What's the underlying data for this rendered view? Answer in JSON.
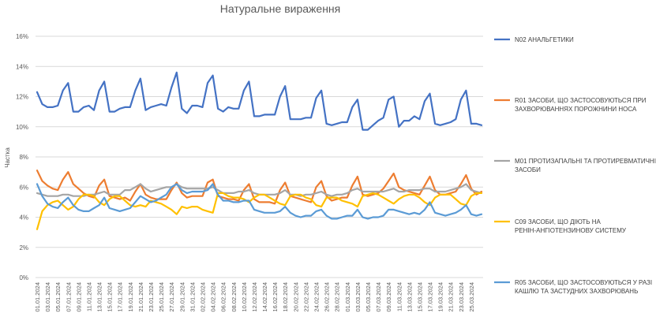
{
  "chart_data": {
    "type": "line",
    "title": "Натуральне вираження",
    "ylabel": "Частка",
    "xlabel": "",
    "ylim": [
      0,
      16
    ],
    "yticks": [
      "0%",
      "2%",
      "4%",
      "6%",
      "8%",
      "10%",
      "12%",
      "14%",
      "16%"
    ],
    "grid": true,
    "legend_position": "right",
    "x": [
      "01.01.2024",
      "02.01.2024",
      "03.01.2024",
      "04.01.2024",
      "05.01.2024",
      "06.01.2024",
      "07.01.2024",
      "08.01.2024",
      "09.01.2024",
      "10.01.2024",
      "11.01.2024",
      "12.01.2024",
      "13.01.2024",
      "14.01.2024",
      "15.01.2024",
      "16.01.2024",
      "17.01.2024",
      "18.01.2024",
      "19.01.2024",
      "20.01.2024",
      "21.01.2024",
      "22.01.2024",
      "23.01.2024",
      "24.01.2024",
      "25.01.2024",
      "26.01.2024",
      "27.01.2024",
      "28.01.2024",
      "29.01.2024",
      "30.01.2024",
      "31.01.2024",
      "01.02.2024",
      "02.02.2024",
      "03.02.2024",
      "04.02.2024",
      "05.02.2024",
      "06.02.2024",
      "07.02.2024",
      "08.02.2024",
      "09.02.2024",
      "10.02.2024",
      "11.02.2024",
      "12.02.2024",
      "13.02.2024",
      "14.02.2024",
      "15.02.2024",
      "16.02.2024",
      "17.02.2024",
      "18.02.2024",
      "19.02.2024",
      "20.02.2024",
      "21.02.2024",
      "22.02.2024",
      "23.02.2024",
      "24.02.2024",
      "25.02.2024",
      "26.02.2024",
      "27.02.2024",
      "28.02.2024",
      "29.02.2024",
      "01.03.2024",
      "02.03.2024",
      "03.03.2024",
      "04.03.2024",
      "05.03.2024",
      "06.03.2024",
      "07.03.2024",
      "08.03.2024",
      "09.03.2024",
      "10.03.2024",
      "11.03.2024",
      "12.03.2024",
      "13.03.2024",
      "14.03.2024",
      "15.03.2024",
      "16.03.2024",
      "17.03.2024",
      "18.03.2024",
      "19.03.2024",
      "20.03.2024",
      "21.03.2024",
      "22.03.2024",
      "23.03.2024",
      "24.03.2024",
      "25.03.2024",
      "26.03.2024",
      "27.03.2024"
    ],
    "xticks_shown": [
      "01.01.2024",
      "03.01.2024",
      "05.01.2024",
      "07.01.2024",
      "09.01.2024",
      "11.01.2024",
      "13.01.2024",
      "15.01.2024",
      "17.01.2024",
      "19.01.2024",
      "21.01.2024",
      "23.01.2024",
      "25.01.2024",
      "27.01.2024",
      "29.01.2024",
      "31.01.2024",
      "02.02.2024",
      "04.02.2024",
      "06.02.2024",
      "08.02.2024",
      "10.02.2024",
      "12.02.2024",
      "14.02.2024",
      "16.02.2024",
      "18.02.2024",
      "20.02.2024",
      "22.02.2024",
      "24.02.2024",
      "26.02.2024",
      "28.02.2024",
      "01.03.2024",
      "03.03.2024",
      "05.03.2024",
      "07.03.2024",
      "09.03.2024",
      "11.03.2024",
      "13.03.2024",
      "15.03.2024",
      "17.03.2024",
      "19.03.2024",
      "21.03.2024",
      "23.03.2024",
      "25.03.2024"
    ],
    "series": [
      {
        "name": "N02 АНАЛЬГЕТИКИ",
        "color": "#4472C4",
        "values": [
          12.3,
          11.5,
          11.3,
          11.3,
          11.4,
          12.4,
          12.9,
          11.0,
          11.0,
          11.3,
          11.4,
          11.1,
          12.4,
          13.0,
          11.0,
          11.0,
          11.2,
          11.3,
          11.3,
          12.4,
          13.2,
          11.1,
          11.3,
          11.4,
          11.5,
          11.4,
          12.6,
          13.6,
          11.2,
          10.9,
          11.4,
          11.4,
          11.3,
          12.9,
          13.4,
          11.2,
          11.0,
          11.3,
          11.2,
          11.2,
          12.4,
          13.0,
          10.7,
          10.7,
          10.8,
          10.8,
          10.8,
          12.0,
          12.7,
          10.5,
          10.5,
          10.5,
          10.6,
          10.6,
          11.9,
          12.4,
          10.2,
          10.1,
          10.2,
          10.3,
          10.3,
          11.3,
          11.8,
          9.8,
          9.8,
          10.1,
          10.4,
          10.6,
          11.8,
          12.0,
          10.0,
          10.4,
          10.4,
          10.7,
          10.5,
          11.7,
          12.2,
          10.2,
          10.1,
          10.2,
          10.3,
          10.5,
          11.8,
          12.4,
          10.2,
          10.2,
          10.1
        ]
      },
      {
        "name": "R01 ЗАСОБИ, ЩО ЗАСТОСОВУЮТЬСЯ ПРИ ЗАХВОРЮВАННЯХ ПОРОЖНИНИ НОСА",
        "color": "#ED7D31",
        "values": [
          7.1,
          6.4,
          6.1,
          5.9,
          5.8,
          6.5,
          7.0,
          6.2,
          5.9,
          5.6,
          5.4,
          5.3,
          6.1,
          6.5,
          5.4,
          5.3,
          5.2,
          5.3,
          5.1,
          5.7,
          6.2,
          5.5,
          5.3,
          5.2,
          5.2,
          5.2,
          5.8,
          6.3,
          5.6,
          5.3,
          5.4,
          5.4,
          5.4,
          6.3,
          6.5,
          5.4,
          5.3,
          5.2,
          5.2,
          5.1,
          5.8,
          6.2,
          5.2,
          5.0,
          5.0,
          5.0,
          4.9,
          5.8,
          6.3,
          5.4,
          5.3,
          5.2,
          5.1,
          5.0,
          6.0,
          6.4,
          5.4,
          5.1,
          5.2,
          5.3,
          5.3,
          6.1,
          6.7,
          5.5,
          5.4,
          5.5,
          5.6,
          5.9,
          6.4,
          6.9,
          6.0,
          5.8,
          5.7,
          5.6,
          5.5,
          6.1,
          6.7,
          5.8,
          5.5,
          5.5,
          5.6,
          5.7,
          6.2,
          6.8,
          5.9,
          5.5,
          5.7
        ]
      },
      {
        "name": "M01 ПРОТИЗАПАЛЬНІ ТА ПРОТИРЕВМАТИЧНІ ЗАСОБИ",
        "color": "#A5A5A5",
        "values": [
          5.6,
          5.5,
          5.4,
          5.4,
          5.4,
          5.5,
          5.5,
          5.4,
          5.4,
          5.4,
          5.5,
          5.5,
          5.6,
          5.7,
          5.5,
          5.5,
          5.5,
          5.8,
          5.8,
          6.0,
          6.2,
          5.9,
          5.7,
          5.8,
          5.9,
          6.0,
          6.0,
          6.2,
          6.0,
          5.9,
          5.9,
          5.9,
          5.9,
          5.9,
          6.0,
          5.8,
          5.6,
          5.6,
          5.6,
          5.7,
          5.7,
          5.8,
          5.6,
          5.5,
          5.5,
          5.5,
          5.5,
          5.6,
          5.8,
          5.5,
          5.5,
          5.4,
          5.5,
          5.5,
          5.6,
          5.7,
          5.5,
          5.4,
          5.5,
          5.5,
          5.6,
          5.8,
          5.9,
          5.7,
          5.7,
          5.7,
          5.7,
          5.7,
          5.8,
          5.9,
          5.7,
          5.7,
          5.8,
          5.8,
          5.8,
          5.9,
          5.9,
          5.7,
          5.7,
          5.7,
          5.8,
          5.9,
          6.0,
          6.2,
          5.8,
          5.7,
          5.6
        ]
      },
      {
        "name": "C09 ЗАСОБИ, ЩО ДІЮТЬ НА РЕНІН-АНГІОТЕНЗИНОВУ СИСТЕМУ",
        "color": "#FFC000",
        "values": [
          3.2,
          4.4,
          4.8,
          5.0,
          5.1,
          4.8,
          4.5,
          4.7,
          5.2,
          5.5,
          5.5,
          5.4,
          5.0,
          4.8,
          5.2,
          5.4,
          5.4,
          5.1,
          4.8,
          4.7,
          4.8,
          4.7,
          5.1,
          5.0,
          4.9,
          4.7,
          4.5,
          4.2,
          4.7,
          4.6,
          4.7,
          4.7,
          4.5,
          4.4,
          4.3,
          5.6,
          5.6,
          5.4,
          5.3,
          5.3,
          5.2,
          5.0,
          5.3,
          5.5,
          5.5,
          5.3,
          5.1,
          4.9,
          4.8,
          5.4,
          5.5,
          5.5,
          5.3,
          5.2,
          4.8,
          4.7,
          5.3,
          5.3,
          5.3,
          5.1,
          5.0,
          4.9,
          4.7,
          5.4,
          5.5,
          5.6,
          5.5,
          5.3,
          5.1,
          4.9,
          5.2,
          5.4,
          5.5,
          5.5,
          5.3,
          5.0,
          4.8,
          5.3,
          5.5,
          5.5,
          5.5,
          5.2,
          4.9,
          4.8,
          5.4,
          5.6,
          5.6
        ]
      },
      {
        "name": "R05 ЗАСОБИ, ЩО ЗАСТОСОВУЮТЬСЯ У РАЗІ КАШЛЮ ТА ЗАСТУДНИХ ЗАХВОРЮВАНЬ",
        "color": "#5B9BD5",
        "values": [
          6.2,
          5.4,
          4.9,
          4.7,
          4.6,
          5.0,
          5.3,
          4.8,
          4.5,
          4.4,
          4.4,
          4.6,
          4.8,
          5.3,
          4.6,
          4.5,
          4.4,
          4.5,
          4.6,
          5.0,
          5.4,
          5.2,
          5.0,
          5.1,
          5.3,
          5.5,
          6.0,
          6.2,
          5.8,
          5.6,
          5.7,
          5.7,
          5.7,
          5.8,
          6.2,
          5.5,
          5.1,
          5.1,
          5.0,
          5.0,
          5.1,
          5.1,
          4.5,
          4.4,
          4.3,
          4.3,
          4.3,
          4.4,
          4.7,
          4.3,
          4.1,
          4.0,
          4.1,
          4.1,
          4.4,
          4.5,
          4.1,
          3.9,
          3.9,
          4.0,
          4.1,
          4.1,
          4.5,
          4.0,
          3.9,
          4.0,
          4.0,
          4.1,
          4.5,
          4.5,
          4.4,
          4.3,
          4.2,
          4.3,
          4.2,
          4.5,
          5.0,
          4.3,
          4.2,
          4.1,
          4.2,
          4.3,
          4.5,
          4.8,
          4.2,
          4.1,
          4.2
        ]
      }
    ]
  }
}
